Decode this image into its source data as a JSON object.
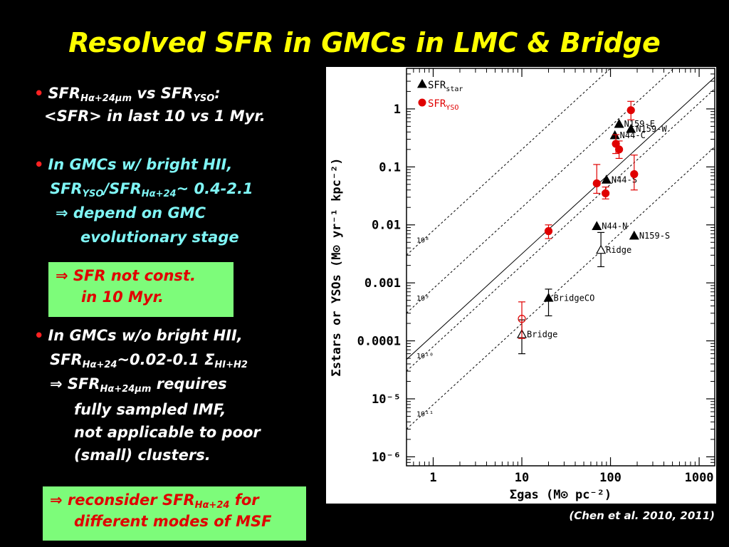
{
  "slide": {
    "title": "Resolved SFR in GMCs in LMC & Bridge",
    "citation": "(Chen et al. 2010, 2011)"
  },
  "text": {
    "b1_sfr": "SFR",
    "b1_sub": "Hα+24μm",
    "b1_vs": " vs SFR",
    "b1_sub2": "YSO",
    "b1_colon": ":",
    "b1_line2": "<SFR> in last 10 vs 1 Myr.",
    "b2_line1": "In GMCs w/ bright HII,",
    "b2_sfr": "SFR",
    "b2_sub1": "YSO",
    "b2_slash": "/SFR",
    "b2_sub2": "Hα+24",
    "b2_val": "~ 0.4-2.1",
    "b2_line3": "⇒ depend on GMC",
    "b2_line4": "evolutionary stage",
    "box1_line1": "⇒ SFR not const.",
    "box1_line2": "in 10 Myr.",
    "b3_line1": "In GMCs w/o bright HII,",
    "b3_sfr": "SFR",
    "b3_sub1": "Hα+24",
    "b3_val": "~0.02-0.1 Σ",
    "b3_sub2": "HI+H2",
    "b3_l3a": "⇒ SFR",
    "b3_l3sub": "Hα+24μm",
    "b3_l3b": " requires",
    "b3_line4": "fully sampled IMF,",
    "b3_line5": "not applicable to poor",
    "b3_line6": "(small) clusters.",
    "box2_a": "⇒ reconsider SFR",
    "box2_sub": "Hα+24",
    "box2_b": " for",
    "box2_line2": "different modes of MSF"
  },
  "chart_data": {
    "type": "scatter",
    "xlabel": "Σgas (M⊙ pc⁻²)",
    "ylabel": "Σstars or YSOs (M⊙ yr⁻¹ kpc⁻²)",
    "xscale": "log",
    "yscale": "log",
    "xlim": [
      0.5,
      1500
    ],
    "ylim": [
      7e-07,
      5
    ],
    "x_ticks": [
      1,
      10,
      100,
      1000
    ],
    "x_tick_labels": [
      "1",
      "10",
      "100",
      "1000"
    ],
    "y_ticks": [
      1e-06,
      1e-05,
      0.0001,
      0.001,
      0.01,
      0.1,
      1
    ],
    "y_tick_labels": [
      "10⁻⁶",
      "10⁻⁵",
      "0.0001",
      "0.001",
      "0.01",
      "0.1",
      "1"
    ],
    "legend": {
      "position": "top-left",
      "entries": [
        {
          "label": "SFR",
          "sub": "star",
          "marker": "triangle",
          "color": "#000000"
        },
        {
          "label": "SFR",
          "sub": "YSO",
          "marker": "circle",
          "color": "#e00000"
        }
      ]
    },
    "series": [
      {
        "name": "SFRstar",
        "marker": "triangle",
        "color": "#000000",
        "points": [
          {
            "label": "N159-E",
            "x": 125,
            "y": 0.55
          },
          {
            "label": "N159-W",
            "x": 170,
            "y": 0.45
          },
          {
            "label": "N44-C",
            "x": 112,
            "y": 0.35
          },
          {
            "label": "N44-S",
            "x": 90,
            "y": 0.06
          },
          {
            "label": "N44-N",
            "x": 70,
            "y": 0.0095
          },
          {
            "label": "N159-S",
            "x": 185,
            "y": 0.0065
          },
          {
            "label": "Ridge",
            "x": 78,
            "y": 0.0037,
            "open": true,
            "ylo": 0.0019,
            "yhi": 0.0074
          },
          {
            "label": "BridgeCO",
            "x": 20,
            "y": 0.00055,
            "ylo": 0.00027,
            "yhi": 0.00078
          },
          {
            "label": "Bridge",
            "x": 10,
            "y": 0.00013,
            "open": true,
            "ylo": 6e-05,
            "yhi": 0.00023
          }
        ]
      },
      {
        "name": "SFRYSO",
        "marker": "circle",
        "color": "#e00000",
        "points": [
          {
            "x": 170,
            "y": 0.95,
            "ylo": 0.65,
            "yhi": 1.35
          },
          {
            "x": 115,
            "y": 0.25,
            "ylo": 0.17,
            "yhi": 0.36
          },
          {
            "x": 125,
            "y": 0.2,
            "ylo": 0.14,
            "yhi": 0.28
          },
          {
            "x": 185,
            "y": 0.075,
            "ylo": 0.04,
            "yhi": 0.16
          },
          {
            "x": 70,
            "y": 0.052,
            "ylo": 0.035,
            "yhi": 0.11
          },
          {
            "x": 88,
            "y": 0.035,
            "ylo": 0.028,
            "yhi": 0.045
          },
          {
            "x": 20,
            "y": 0.0078,
            "ylo": 0.0058,
            "yhi": 0.01
          },
          {
            "x": 10,
            "y": 0.00024,
            "open": true,
            "ylo": 0.00011,
            "yhi": 0.00047
          }
        ]
      }
    ],
    "reference_lines": [
      {
        "style": "solid",
        "label": "",
        "log_y_at_x1": -3.9
      },
      {
        "style": "dotted",
        "label": "10⁸",
        "log_y_at_x1": -2.1
      },
      {
        "style": "dotted",
        "label": "10⁹",
        "log_y_at_x1": -3.1
      },
      {
        "style": "dotted",
        "label": "10¹⁰",
        "log_y_at_x1": -4.1
      },
      {
        "style": "dotted",
        "label": "10¹¹",
        "log_y_at_x1": -5.1
      }
    ],
    "reference_slope": 1.4
  }
}
